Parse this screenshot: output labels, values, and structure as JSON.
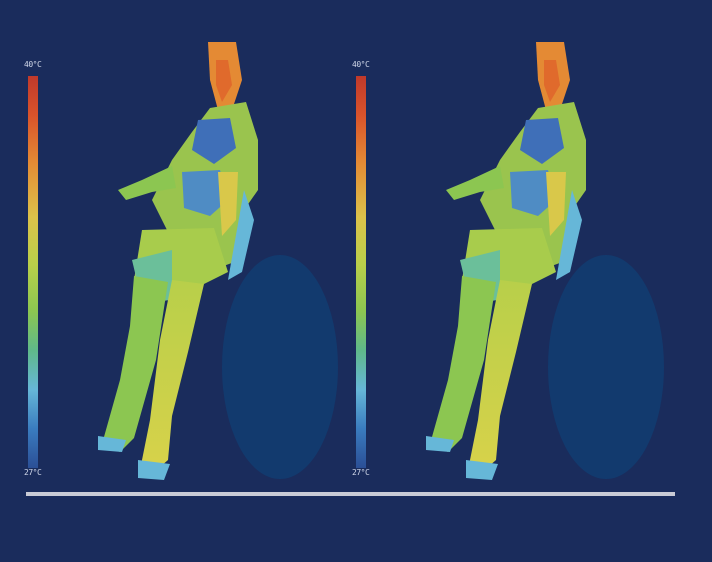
{
  "panels": [
    {
      "scale_max_label": "40°C",
      "scale_min_label": "27°C"
    },
    {
      "scale_max_label": "40°C",
      "scale_min_label": "27°C"
    }
  ],
  "colors": {
    "background": "#1a2c5c",
    "scale_hot": "#c0392b",
    "scale_cold": "#2b4f96",
    "body_warm": "#b9cf4a",
    "head_hot": "#e48a34",
    "cool_oval": "#123a6e"
  }
}
